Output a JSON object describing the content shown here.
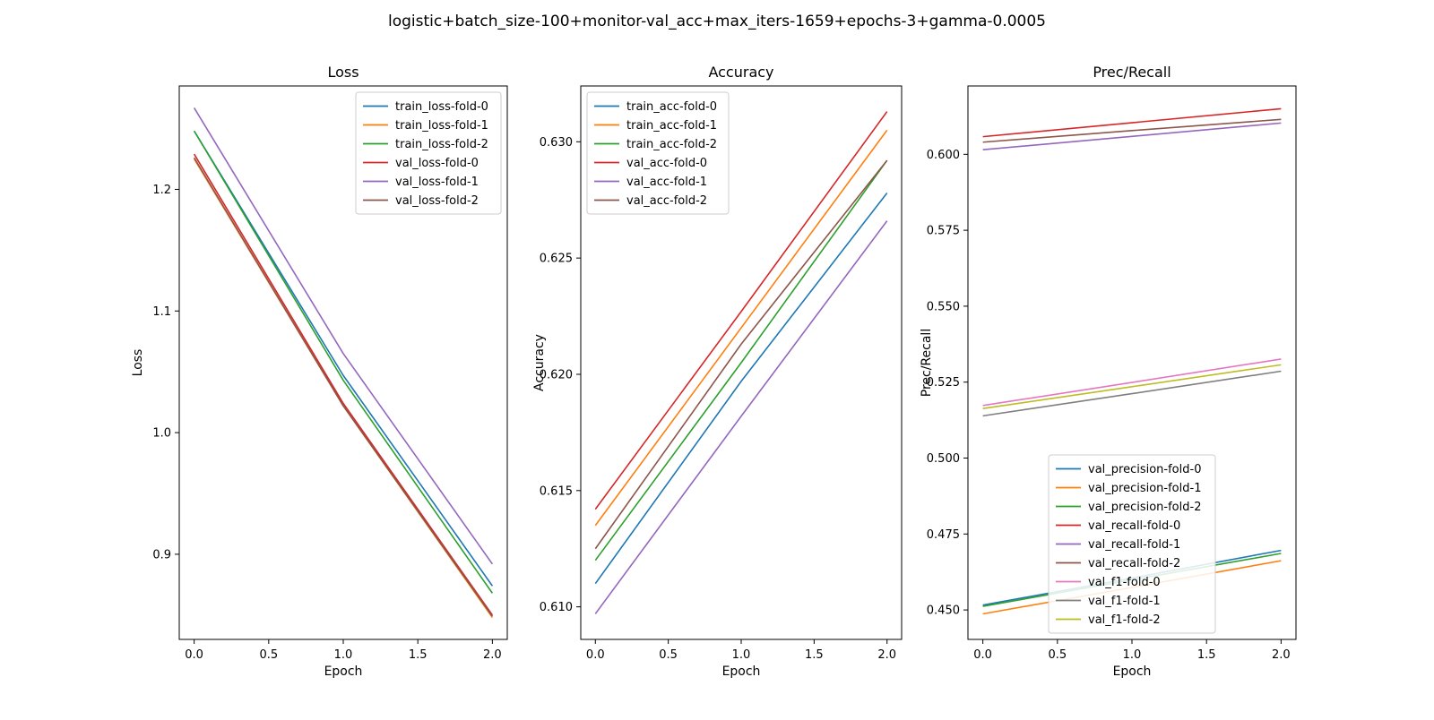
{
  "figure": {
    "title": "logistic+batch_size-100+monitor-val_acc+max_iters-1659+epochs-3+gamma-0.0005"
  },
  "colors": [
    "#1f77b4",
    "#ff7f0e",
    "#2ca02c",
    "#d62728",
    "#9467bd",
    "#8c564b",
    "#e377c2",
    "#7f7f7f",
    "#bcbd22"
  ],
  "chart_data": [
    {
      "type": "line",
      "title": "Loss",
      "xlabel": "Epoch",
      "ylabel": "Loss",
      "xlim": [
        -0.1,
        2.1
      ],
      "ylim": [
        0.83,
        1.285
      ],
      "xticks": [
        "0.0",
        "0.5",
        "1.0",
        "1.5",
        "2.0"
      ],
      "yticks": [
        "0.9",
        "1.0",
        "1.1",
        "1.2"
      ],
      "legend_position": "upper right",
      "x": [
        0,
        1,
        2
      ],
      "series": [
        {
          "name": "train_loss-fold-0",
          "values": [
            1.248,
            1.047,
            0.874
          ]
        },
        {
          "name": "train_loss-fold-1",
          "values": [
            1.225,
            1.022,
            0.848
          ]
        },
        {
          "name": "train_loss-fold-2",
          "values": [
            1.248,
            1.043,
            0.868
          ]
        },
        {
          "name": "val_loss-fold-0",
          "values": [
            1.229,
            1.024,
            0.85
          ]
        },
        {
          "name": "val_loss-fold-1",
          "values": [
            1.267,
            1.065,
            0.892
          ]
        },
        {
          "name": "val_loss-fold-2",
          "values": [
            1.226,
            1.022,
            0.849
          ]
        }
      ]
    },
    {
      "type": "line",
      "title": "Accuracy",
      "xlabel": "Epoch",
      "ylabel": "Accuracy",
      "xlim": [
        -0.1,
        2.1
      ],
      "ylim": [
        0.6086,
        0.6324
      ],
      "xticks": [
        "0.0",
        "0.5",
        "1.0",
        "1.5",
        "2.0"
      ],
      "yticks": [
        "0.610",
        "0.615",
        "0.620",
        "0.625",
        "0.630"
      ],
      "legend_position": "upper left",
      "x": [
        0,
        1,
        2
      ],
      "series": [
        {
          "name": "train_acc-fold-0",
          "values": [
            0.611,
            0.6197,
            0.6278
          ]
        },
        {
          "name": "train_acc-fold-1",
          "values": [
            0.6135,
            0.622,
            0.6305
          ]
        },
        {
          "name": "train_acc-fold-2",
          "values": [
            0.612,
            0.6205,
            0.6292
          ]
        },
        {
          "name": "val_acc-fold-0",
          "values": [
            0.6142,
            0.6227,
            0.6313
          ]
        },
        {
          "name": "val_acc-fold-1",
          "values": [
            0.6097,
            0.6182,
            0.6266
          ]
        },
        {
          "name": "val_acc-fold-2",
          "values": [
            0.6125,
            0.6213,
            0.6292
          ]
        }
      ]
    },
    {
      "type": "line",
      "title": "Prec/Recall",
      "xlabel": "Epoch",
      "ylabel": "Prec/Recall",
      "xlim": [
        -0.1,
        2.1
      ],
      "ylim": [
        0.4403,
        0.6225
      ],
      "xticks": [
        "0.0",
        "0.5",
        "1.0",
        "1.5",
        "2.0"
      ],
      "yticks": [
        "0.450",
        "0.475",
        "0.500",
        "0.525",
        "0.550",
        "0.575",
        "0.600"
      ],
      "legend_position": "lower center",
      "x": [
        0,
        1,
        2
      ],
      "series": [
        {
          "name": "val_precision-fold-0",
          "values": [
            0.4516,
            0.4605,
            0.4696
          ]
        },
        {
          "name": "val_precision-fold-1",
          "values": [
            0.4487,
            0.4574,
            0.4662
          ]
        },
        {
          "name": "val_precision-fold-2",
          "values": [
            0.4512,
            0.4599,
            0.4686
          ]
        },
        {
          "name": "val_recall-fold-0",
          "values": [
            0.6058,
            0.6104,
            0.615
          ]
        },
        {
          "name": "val_recall-fold-1",
          "values": [
            0.6015,
            0.6059,
            0.6103
          ]
        },
        {
          "name": "val_recall-fold-2",
          "values": [
            0.604,
            0.6078,
            0.6115
          ]
        },
        {
          "name": "val_f1-fold-0",
          "values": [
            0.5173,
            0.5249,
            0.5326
          ]
        },
        {
          "name": "val_f1-fold-1",
          "values": [
            0.5139,
            0.5212,
            0.5286
          ]
        },
        {
          "name": "val_f1-fold-2",
          "values": [
            0.5163,
            0.5235,
            0.5307
          ]
        }
      ]
    }
  ]
}
